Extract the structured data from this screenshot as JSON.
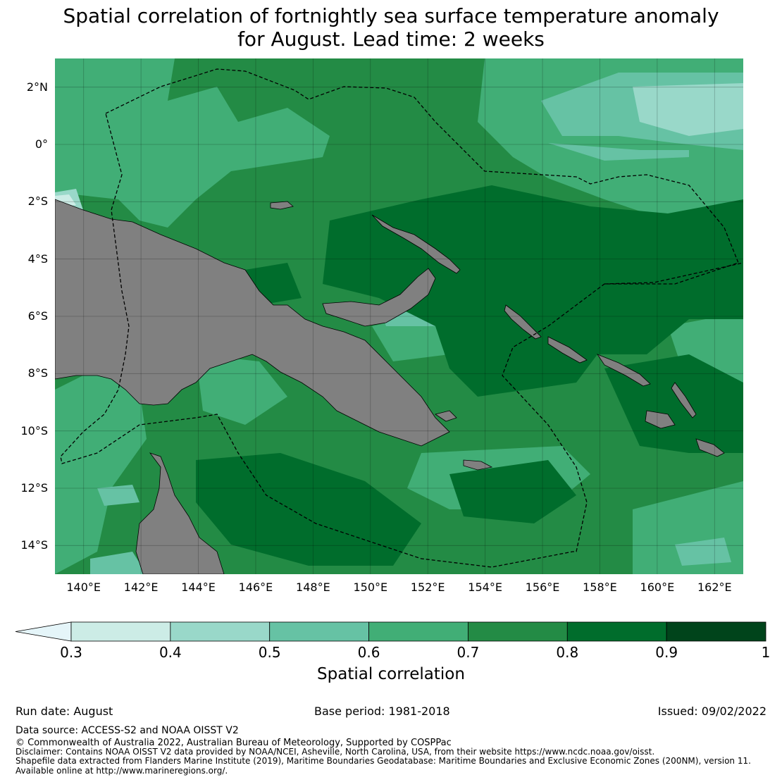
{
  "title": {
    "line1": "Spatial correlation of fortnightly sea surface temperature anomaly",
    "line2": "for August. Lead time: 2 weeks"
  },
  "map": {
    "lon_range": [
      139,
      163
    ],
    "lat_range": [
      -15,
      3
    ],
    "lat_ticks": [
      "2°N",
      "0°",
      "2°S",
      "4°S",
      "6°S",
      "8°S",
      "10°S",
      "12°S",
      "14°S"
    ],
    "lat_values": [
      2,
      0,
      -2,
      -4,
      -6,
      -8,
      -10,
      -12,
      -14
    ],
    "lon_ticks": [
      "140°E",
      "142°E",
      "144°E",
      "146°E",
      "148°E",
      "150°E",
      "152°E",
      "154°E",
      "156°E",
      "158°E",
      "160°E",
      "162°E"
    ],
    "lon_values": [
      140,
      142,
      144,
      146,
      148,
      150,
      152,
      154,
      156,
      158,
      160,
      162
    ],
    "land_color": "#808080"
  },
  "colorbar": {
    "label": "Spatial correlation",
    "ticks": [
      "0.3",
      "0.4",
      "0.5",
      "0.6",
      "0.7",
      "0.8",
      "0.9",
      "1"
    ],
    "colors": [
      "#e5f5f9",
      "#ccece6",
      "#99d8c9",
      "#66c2a4",
      "#41ae76",
      "#238b45",
      "#006d2c",
      "#00441b"
    ]
  },
  "footer": {
    "run_date": "Run date: August",
    "base_period": "Base period: 1981-2018",
    "issued": "Issued: 09/02/2022",
    "data_source": "Data source: ACCESS-S2 and NOAA OISST V2",
    "copyright": "© Commonwealth of Australia 2022, Australian Bureau of Meteorology, Supported by COSPPac",
    "disclaimer": "Disclaimer: Contains NOAA OISST V2 data provided by NOAA/NCEI, Asheville, North Carolina, USA, from their website https://www.ncdc.noaa.gov/oisst.",
    "shapefile": "Shapefile data extracted from Flanders Marine Institute (2019), Maritime Boundaries Geodatabase: Maritime Boundaries and Exclusive Economic Zones (200NM), version 11.",
    "available": "Available online at http://www.marineregions.org/."
  }
}
